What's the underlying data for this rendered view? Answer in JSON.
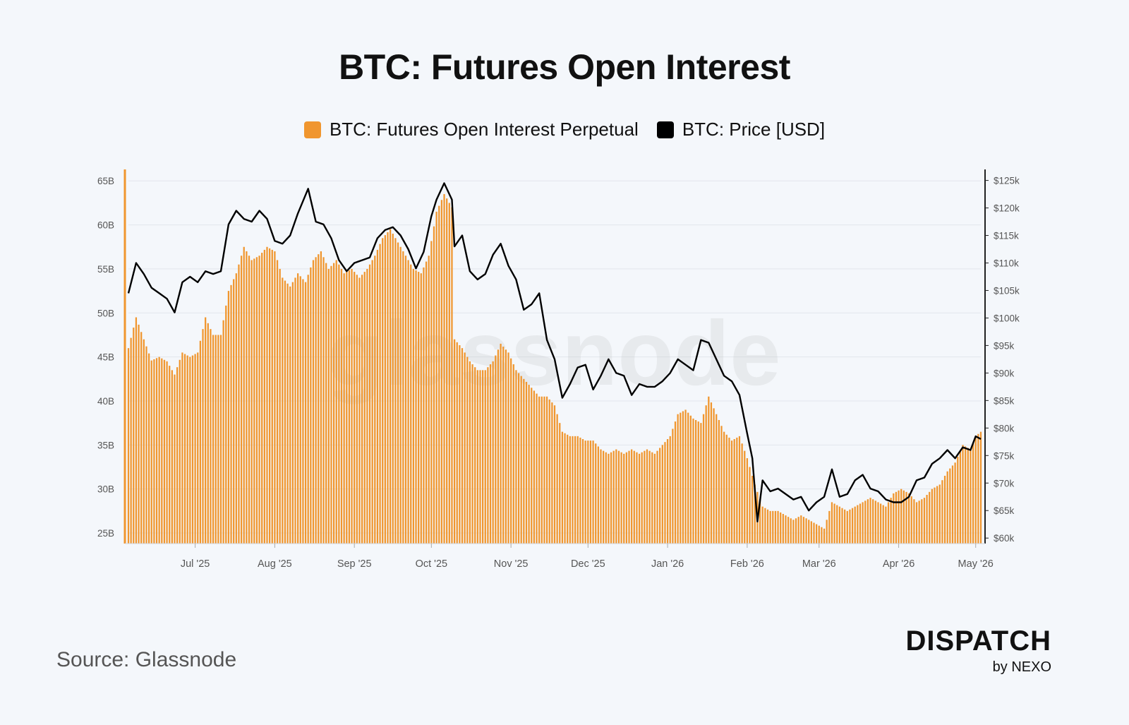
{
  "title": "BTC: Futures Open Interest",
  "legend": [
    {
      "label": "BTC: Futures Open Interest Perpetual",
      "color": "#f0962e"
    },
    {
      "label": "BTC: Price [USD]",
      "color": "#000000"
    }
  ],
  "watermark": "glassnode",
  "source": "Source: Glassnode",
  "brand": {
    "main": "DISPATCH",
    "sub": "by NEXO"
  },
  "chart_data": {
    "type": "bar",
    "title": "BTC: Futures Open Interest",
    "x_ticks": [
      "Jul '25",
      "Aug '25",
      "Sep '25",
      "Oct '25",
      "Nov '25",
      "Dec '25",
      "Jan '26",
      "Feb '26",
      "Mar '26",
      "Apr '26",
      "May '26"
    ],
    "y_left_ticks": [
      "25B",
      "30B",
      "35B",
      "40B",
      "45B",
      "50B",
      "55B",
      "60B",
      "65B"
    ],
    "y_left_values": [
      25,
      30,
      35,
      40,
      45,
      50,
      55,
      60,
      65
    ],
    "y_left_range": [
      23.8,
      66.3
    ],
    "y_right_ticks": [
      "$60k",
      "$65k",
      "$70k",
      "$75k",
      "$80k",
      "$85k",
      "$90k",
      "$95k",
      "$100k",
      "$105k",
      "$110k",
      "$115k",
      "$120k",
      "$125k"
    ],
    "y_right_values": [
      60,
      65,
      70,
      75,
      80,
      85,
      90,
      95,
      100,
      105,
      110,
      115,
      120,
      125
    ],
    "y_right_range": [
      59,
      127
    ],
    "grid": true,
    "legend_position": "top-center",
    "x_start": "2025-06-05",
    "x_end": "2026-05-03",
    "series": [
      {
        "name": "BTC: Futures Open Interest Perpetual",
        "type": "bar",
        "axis": "left",
        "unit": "B",
        "color": "#f0962e",
        "points": [
          [
            "2025-06-05",
            46.0
          ],
          [
            "2025-06-08",
            49.5
          ],
          [
            "2025-06-11",
            47.0
          ],
          [
            "2025-06-14",
            44.6
          ],
          [
            "2025-06-17",
            45.0
          ],
          [
            "2025-06-20",
            44.5
          ],
          [
            "2025-06-23",
            43.0
          ],
          [
            "2025-06-26",
            45.5
          ],
          [
            "2025-06-29",
            45.0
          ],
          [
            "2025-07-02",
            45.5
          ],
          [
            "2025-07-05",
            49.5
          ],
          [
            "2025-07-08",
            47.5
          ],
          [
            "2025-07-11",
            47.5
          ],
          [
            "2025-07-14",
            52.5
          ],
          [
            "2025-07-17",
            54.5
          ],
          [
            "2025-07-20",
            57.5
          ],
          [
            "2025-07-23",
            56.0
          ],
          [
            "2025-07-26",
            56.5
          ],
          [
            "2025-07-29",
            57.5
          ],
          [
            "2025-08-01",
            57.0
          ],
          [
            "2025-08-04",
            54.0
          ],
          [
            "2025-08-07",
            53.0
          ],
          [
            "2025-08-10",
            54.5
          ],
          [
            "2025-08-13",
            53.5
          ],
          [
            "2025-08-16",
            56.0
          ],
          [
            "2025-08-19",
            57.0
          ],
          [
            "2025-08-22",
            55.0
          ],
          [
            "2025-08-25",
            56.0
          ],
          [
            "2025-08-28",
            54.5
          ],
          [
            "2025-08-31",
            55.0
          ],
          [
            "2025-09-03",
            54.0
          ],
          [
            "2025-09-06",
            55.0
          ],
          [
            "2025-09-09",
            56.5
          ],
          [
            "2025-09-12",
            58.5
          ],
          [
            "2025-09-15",
            59.5
          ],
          [
            "2025-09-18",
            58.0
          ],
          [
            "2025-09-21",
            56.5
          ],
          [
            "2025-09-24",
            55.0
          ],
          [
            "2025-09-27",
            54.5
          ],
          [
            "2025-09-30",
            56.5
          ],
          [
            "2025-10-03",
            61.5
          ],
          [
            "2025-10-06",
            63.5
          ],
          [
            "2025-10-09",
            62.0
          ],
          [
            "2025-10-10",
            47.0
          ],
          [
            "2025-10-13",
            46.0
          ],
          [
            "2025-10-16",
            44.5
          ],
          [
            "2025-10-19",
            43.5
          ],
          [
            "2025-10-22",
            43.5
          ],
          [
            "2025-10-25",
            44.5
          ],
          [
            "2025-10-28",
            46.5
          ],
          [
            "2025-10-31",
            45.5
          ],
          [
            "2025-11-03",
            43.5
          ],
          [
            "2025-11-06",
            42.5
          ],
          [
            "2025-11-09",
            41.5
          ],
          [
            "2025-11-12",
            40.5
          ],
          [
            "2025-11-15",
            40.5
          ],
          [
            "2025-11-18",
            39.5
          ],
          [
            "2025-11-21",
            36.5
          ],
          [
            "2025-11-24",
            36.0
          ],
          [
            "2025-11-27",
            36.0
          ],
          [
            "2025-11-30",
            35.5
          ],
          [
            "2025-12-03",
            35.5
          ],
          [
            "2025-12-06",
            34.5
          ],
          [
            "2025-12-09",
            34.0
          ],
          [
            "2025-12-12",
            34.5
          ],
          [
            "2025-12-15",
            34.0
          ],
          [
            "2025-12-18",
            34.5
          ],
          [
            "2025-12-21",
            34.0
          ],
          [
            "2025-12-24",
            34.5
          ],
          [
            "2025-12-27",
            34.0
          ],
          [
            "2025-12-30",
            35.0
          ],
          [
            "2026-01-02",
            36.0
          ],
          [
            "2026-01-05",
            38.5
          ],
          [
            "2026-01-08",
            39.0
          ],
          [
            "2026-01-11",
            38.0
          ],
          [
            "2026-01-14",
            37.5
          ],
          [
            "2026-01-17",
            40.5
          ],
          [
            "2026-01-20",
            38.5
          ],
          [
            "2026-01-23",
            36.5
          ],
          [
            "2026-01-26",
            35.5
          ],
          [
            "2026-01-29",
            36.0
          ],
          [
            "2026-02-01",
            33.5
          ],
          [
            "2026-02-04",
            30.5
          ],
          [
            "2026-02-07",
            28.0
          ],
          [
            "2026-02-10",
            27.5
          ],
          [
            "2026-02-13",
            27.5
          ],
          [
            "2026-02-16",
            27.0
          ],
          [
            "2026-02-19",
            26.5
          ],
          [
            "2026-02-22",
            27.0
          ],
          [
            "2026-02-25",
            26.5
          ],
          [
            "2026-02-28",
            26.0
          ],
          [
            "2026-03-03",
            25.5
          ],
          [
            "2026-03-06",
            28.5
          ],
          [
            "2026-03-09",
            28.0
          ],
          [
            "2026-03-12",
            27.5
          ],
          [
            "2026-03-15",
            28.0
          ],
          [
            "2026-03-18",
            28.5
          ],
          [
            "2026-03-21",
            29.0
          ],
          [
            "2026-03-24",
            28.5
          ],
          [
            "2026-03-27",
            28.0
          ],
          [
            "2026-03-30",
            29.5
          ],
          [
            "2026-04-02",
            30.0
          ],
          [
            "2026-04-05",
            29.5
          ],
          [
            "2026-04-08",
            28.5
          ],
          [
            "2026-04-11",
            29.0
          ],
          [
            "2026-04-14",
            30.0
          ],
          [
            "2026-04-17",
            30.5
          ],
          [
            "2026-04-20",
            32.0
          ],
          [
            "2026-04-23",
            33.0
          ],
          [
            "2026-04-26",
            35.0
          ],
          [
            "2026-04-29",
            34.5
          ],
          [
            "2026-05-01",
            36.0
          ],
          [
            "2026-05-03",
            36.5
          ]
        ]
      },
      {
        "name": "BTC: Price [USD]",
        "type": "line",
        "axis": "right",
        "unit": "k",
        "color": "#000000",
        "points": [
          [
            "2025-06-05",
            104.5
          ],
          [
            "2025-06-08",
            110.0
          ],
          [
            "2025-06-11",
            108.0
          ],
          [
            "2025-06-14",
            105.5
          ],
          [
            "2025-06-17",
            104.5
          ],
          [
            "2025-06-20",
            103.5
          ],
          [
            "2025-06-23",
            101.0
          ],
          [
            "2025-06-26",
            106.5
          ],
          [
            "2025-06-29",
            107.5
          ],
          [
            "2025-07-02",
            106.5
          ],
          [
            "2025-07-05",
            108.5
          ],
          [
            "2025-07-08",
            108.0
          ],
          [
            "2025-07-11",
            108.5
          ],
          [
            "2025-07-14",
            117.0
          ],
          [
            "2025-07-17",
            119.5
          ],
          [
            "2025-07-20",
            118.0
          ],
          [
            "2025-07-23",
            117.5
          ],
          [
            "2025-07-26",
            119.5
          ],
          [
            "2025-07-29",
            118.0
          ],
          [
            "2025-08-01",
            114.0
          ],
          [
            "2025-08-04",
            113.5
          ],
          [
            "2025-08-07",
            115.0
          ],
          [
            "2025-08-10",
            119.0
          ],
          [
            "2025-08-14",
            123.5
          ],
          [
            "2025-08-17",
            117.5
          ],
          [
            "2025-08-20",
            117.0
          ],
          [
            "2025-08-23",
            114.5
          ],
          [
            "2025-08-26",
            110.5
          ],
          [
            "2025-08-29",
            108.5
          ],
          [
            "2025-09-01",
            110.0
          ],
          [
            "2025-09-04",
            110.5
          ],
          [
            "2025-09-07",
            111.0
          ],
          [
            "2025-09-10",
            114.5
          ],
          [
            "2025-09-13",
            116.0
          ],
          [
            "2025-09-16",
            116.5
          ],
          [
            "2025-09-19",
            115.0
          ],
          [
            "2025-09-22",
            112.5
          ],
          [
            "2025-09-25",
            109.0
          ],
          [
            "2025-09-28",
            112.0
          ],
          [
            "2025-10-01",
            118.5
          ],
          [
            "2025-10-03",
            121.5
          ],
          [
            "2025-10-06",
            124.5
          ],
          [
            "2025-10-09",
            121.5
          ],
          [
            "2025-10-10",
            113.0
          ],
          [
            "2025-10-13",
            115.0
          ],
          [
            "2025-10-16",
            108.5
          ],
          [
            "2025-10-19",
            107.0
          ],
          [
            "2025-10-22",
            108.0
          ],
          [
            "2025-10-25",
            111.5
          ],
          [
            "2025-10-28",
            113.5
          ],
          [
            "2025-10-31",
            109.5
          ],
          [
            "2025-11-03",
            107.0
          ],
          [
            "2025-11-06",
            101.5
          ],
          [
            "2025-11-09",
            102.5
          ],
          [
            "2025-11-12",
            104.5
          ],
          [
            "2025-11-15",
            96.0
          ],
          [
            "2025-11-18",
            92.5
          ],
          [
            "2025-11-21",
            85.5
          ],
          [
            "2025-11-24",
            88.0
          ],
          [
            "2025-11-27",
            91.0
          ],
          [
            "2025-11-30",
            91.5
          ],
          [
            "2025-12-03",
            87.0
          ],
          [
            "2025-12-06",
            89.5
          ],
          [
            "2025-12-09",
            92.5
          ],
          [
            "2025-12-12",
            90.0
          ],
          [
            "2025-12-15",
            89.5
          ],
          [
            "2025-12-18",
            86.0
          ],
          [
            "2025-12-21",
            88.0
          ],
          [
            "2025-12-24",
            87.5
          ],
          [
            "2025-12-27",
            87.5
          ],
          [
            "2025-12-30",
            88.5
          ],
          [
            "2026-01-02",
            90.0
          ],
          [
            "2026-01-05",
            92.5
          ],
          [
            "2026-01-08",
            91.5
          ],
          [
            "2026-01-11",
            90.5
          ],
          [
            "2026-01-14",
            96.0
          ],
          [
            "2026-01-17",
            95.5
          ],
          [
            "2026-01-20",
            92.5
          ],
          [
            "2026-01-23",
            89.5
          ],
          [
            "2026-01-26",
            88.5
          ],
          [
            "2026-01-29",
            86.0
          ],
          [
            "2026-02-01",
            79.0
          ],
          [
            "2026-02-03",
            74.5
          ],
          [
            "2026-02-05",
            63.0
          ],
          [
            "2026-02-07",
            70.5
          ],
          [
            "2026-02-10",
            68.5
          ],
          [
            "2026-02-13",
            69.0
          ],
          [
            "2026-02-16",
            68.0
          ],
          [
            "2026-02-19",
            67.0
          ],
          [
            "2026-02-22",
            67.5
          ],
          [
            "2026-02-25",
            65.0
          ],
          [
            "2026-02-28",
            66.5
          ],
          [
            "2026-03-03",
            67.5
          ],
          [
            "2026-03-06",
            72.5
          ],
          [
            "2026-03-09",
            67.5
          ],
          [
            "2026-03-12",
            68.0
          ],
          [
            "2026-03-15",
            70.5
          ],
          [
            "2026-03-18",
            71.5
          ],
          [
            "2026-03-21",
            69.0
          ],
          [
            "2026-03-24",
            68.5
          ],
          [
            "2026-03-27",
            67.0
          ],
          [
            "2026-03-30",
            66.5
          ],
          [
            "2026-04-02",
            66.5
          ],
          [
            "2026-04-05",
            67.5
          ],
          [
            "2026-04-08",
            70.5
          ],
          [
            "2026-04-11",
            71.0
          ],
          [
            "2026-04-14",
            73.5
          ],
          [
            "2026-04-17",
            74.5
          ],
          [
            "2026-04-20",
            76.0
          ],
          [
            "2026-04-23",
            74.5
          ],
          [
            "2026-04-26",
            76.5
          ],
          [
            "2026-04-29",
            76.0
          ],
          [
            "2026-05-01",
            78.5
          ],
          [
            "2026-05-03",
            78.0
          ]
        ]
      }
    ]
  }
}
